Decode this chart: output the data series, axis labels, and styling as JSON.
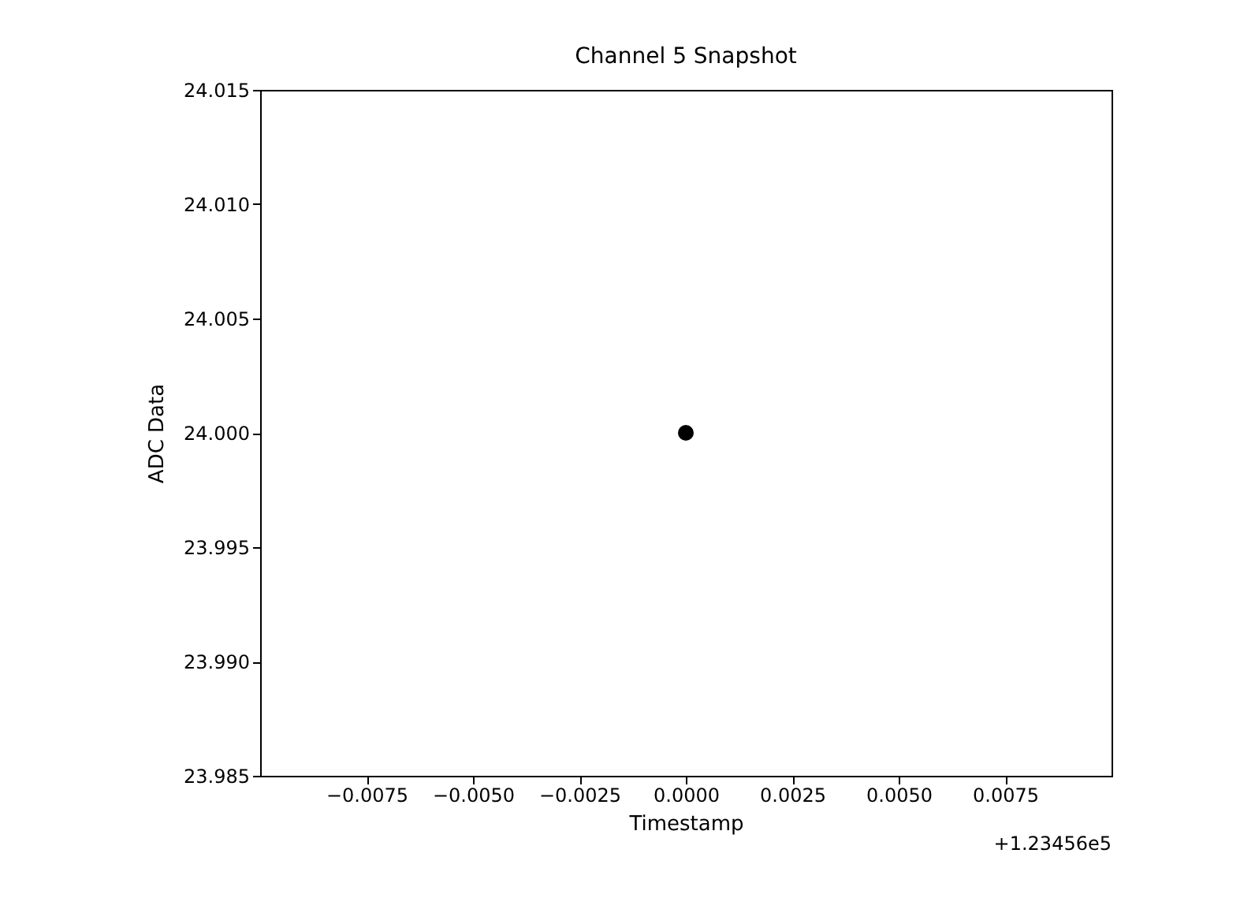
{
  "chart_data": {
    "type": "scatter",
    "title": "Channel 5 Snapshot",
    "xlabel": "Timestamp",
    "ylabel": "ADC Data",
    "x": [
      0
    ],
    "values": [
      24.0
    ],
    "color": "#000000",
    "marker": "circle",
    "xlim": [
      -0.01,
      0.01
    ],
    "xticks": [
      {
        "value": -0.0075,
        "label": "−0.0075"
      },
      {
        "value": -0.005,
        "label": "−0.0050"
      },
      {
        "value": -0.0025,
        "label": "−0.0025"
      },
      {
        "value": 0,
        "label": "0.0000"
      },
      {
        "value": 0.0025,
        "label": "0.0025"
      },
      {
        "value": 0.005,
        "label": "0.0050"
      },
      {
        "value": 0.0075,
        "label": "0.0075"
      }
    ],
    "ylim": [
      23.985,
      24.015
    ],
    "yticks": [
      {
        "value": 23.985,
        "label": "23.985"
      },
      {
        "value": 23.99,
        "label": "23.990"
      },
      {
        "value": 23.995,
        "label": "23.995"
      },
      {
        "value": 24.0,
        "label": "24.000"
      },
      {
        "value": 24.005,
        "label": "24.005"
      },
      {
        "value": 24.01,
        "label": "24.010"
      },
      {
        "value": 24.015,
        "label": "24.015"
      }
    ],
    "annotations": [
      "+1.23456e5"
    ],
    "grid": false
  }
}
